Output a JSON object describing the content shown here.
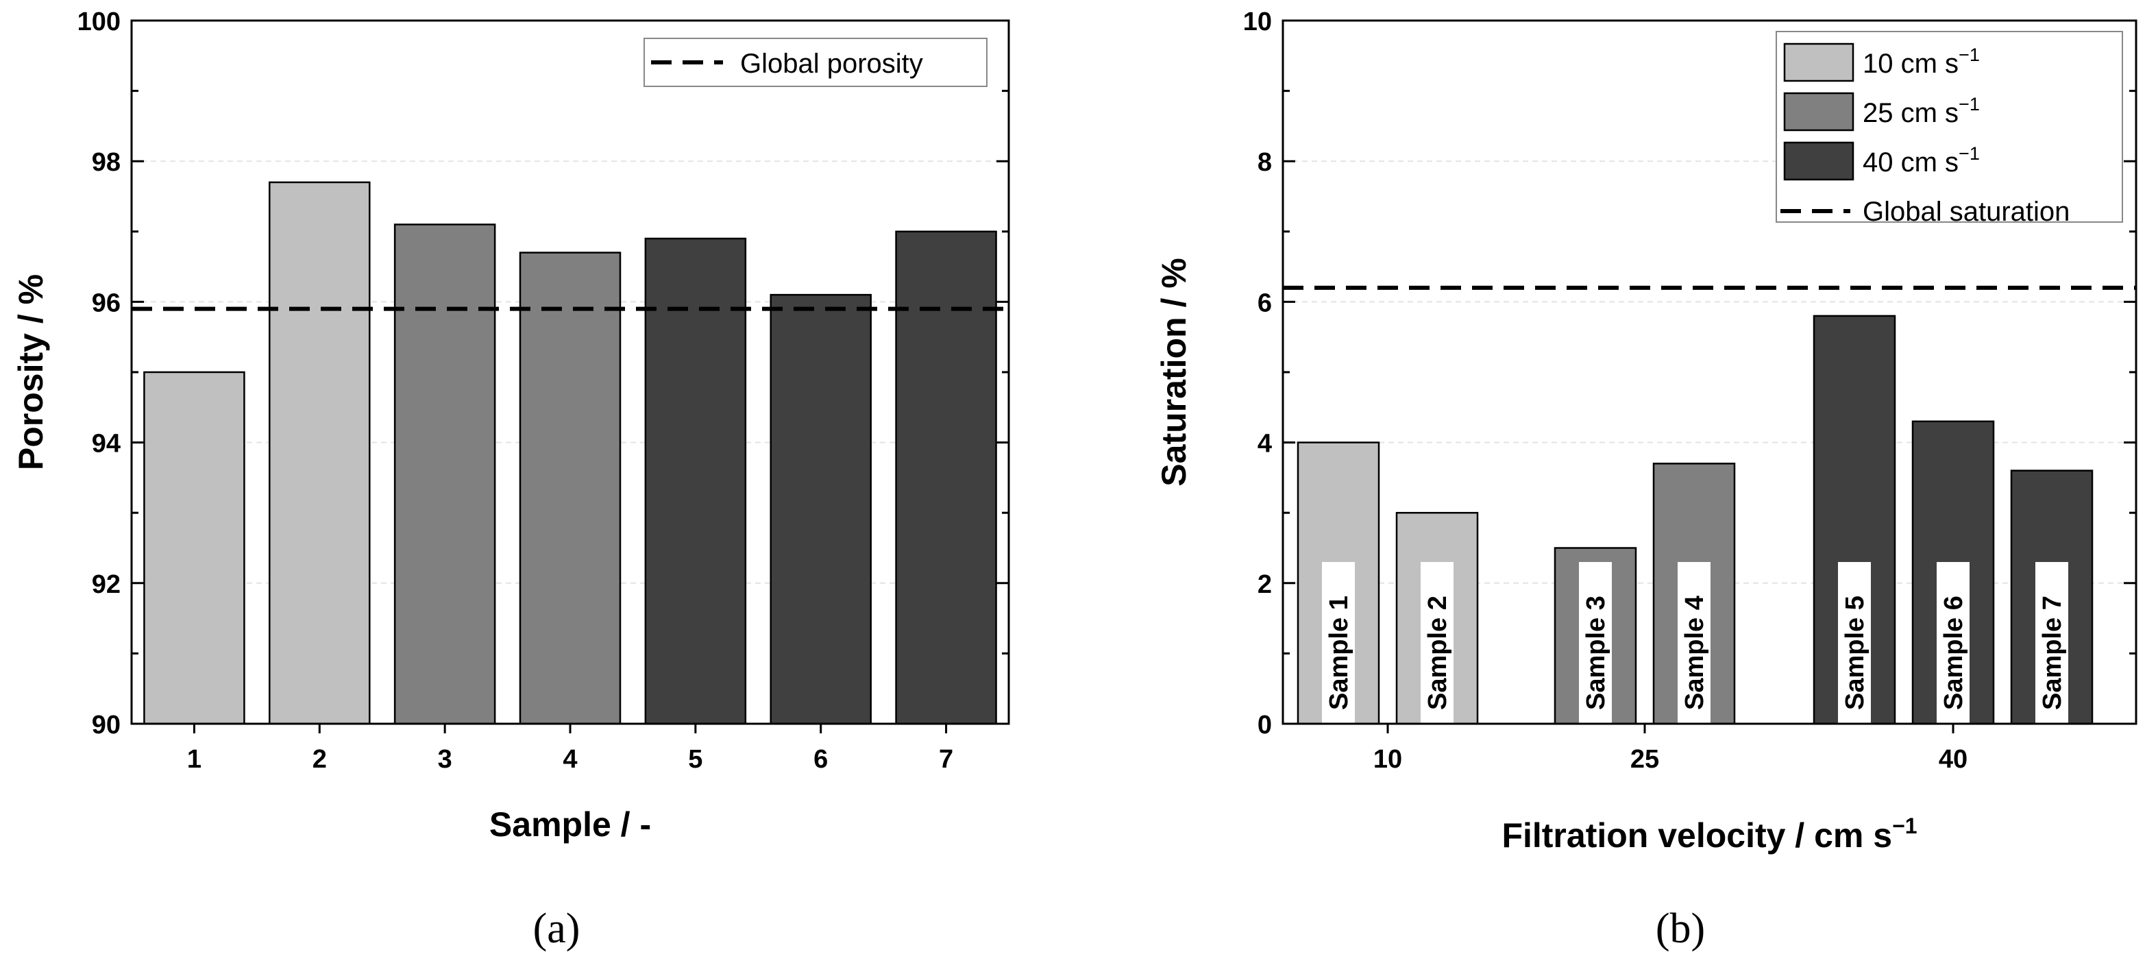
{
  "colors": {
    "light": "#c0c0c0",
    "mid": "#808080",
    "dark": "#404040",
    "axis": "#000000",
    "grid": "#e3e3e3"
  },
  "chart_data": [
    {
      "type": "bar",
      "panel_label": "(a)",
      "categories": [
        "1",
        "2",
        "3",
        "4",
        "5",
        "6",
        "7"
      ],
      "values": [
        95.0,
        97.7,
        97.1,
        96.7,
        96.9,
        96.1,
        97.0
      ],
      "bar_groups": [
        "light",
        "light",
        "mid",
        "mid",
        "dark",
        "dark",
        "dark"
      ],
      "xlabel": "Sample / -",
      "ylabel": "Porosity / %",
      "ylim": [
        90,
        100
      ],
      "yticks": [
        "90",
        "92",
        "94",
        "96",
        "98",
        "100"
      ],
      "grid": true,
      "reference_line": {
        "label": "Global porosity",
        "value": 95.9
      },
      "legend": {
        "position": "top-right",
        "entries": [
          "Global porosity"
        ]
      }
    },
    {
      "type": "bar",
      "panel_label": "(b)",
      "categories": [
        "10",
        "25",
        "40"
      ],
      "bars": [
        {
          "label": "Sample 1",
          "x": 10,
          "value": 4.0,
          "group": "light"
        },
        {
          "label": "Sample 2",
          "x": 10,
          "value": 3.0,
          "group": "light"
        },
        {
          "label": "Sample 3",
          "x": 25,
          "value": 2.5,
          "group": "mid"
        },
        {
          "label": "Sample 4",
          "x": 25,
          "value": 3.7,
          "group": "mid"
        },
        {
          "label": "Sample 5",
          "x": 40,
          "value": 5.8,
          "group": "dark"
        },
        {
          "label": "Sample 6",
          "x": 40,
          "value": 4.3,
          "group": "dark"
        },
        {
          "label": "Sample 7",
          "x": 40,
          "value": 3.6,
          "group": "dark"
        }
      ],
      "xlabel_main": "Filtration velocity / cm s",
      "xlabel_sup": "−1",
      "ylabel": "Saturation / %",
      "ylim": [
        0,
        10
      ],
      "yticks": [
        "0",
        "2",
        "4",
        "6",
        "8",
        "10"
      ],
      "grid": true,
      "reference_line": {
        "label": "Global saturation",
        "value": 6.2
      },
      "legend": {
        "position": "top-right",
        "entries": [
          {
            "main": "10 cm s",
            "sup": "−1",
            "group": "light"
          },
          {
            "main": "25 cm s",
            "sup": "−1",
            "group": "mid"
          },
          {
            "main": "40 cm s",
            "sup": "−1",
            "group": "dark"
          },
          {
            "main": "Global saturation",
            "sup": "",
            "group": "line"
          }
        ]
      }
    }
  ]
}
